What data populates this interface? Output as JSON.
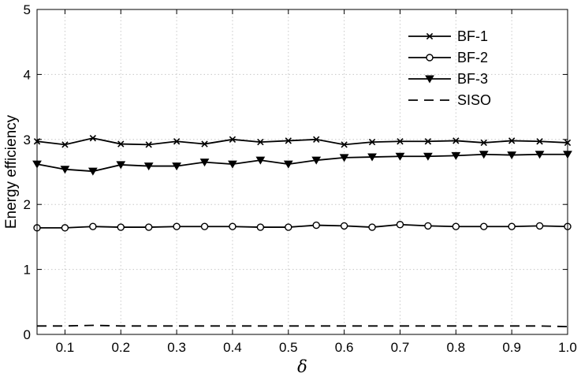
{
  "chart_data": {
    "type": "line",
    "xlabel": "δ",
    "ylabel": "Energy efficiency",
    "xlim": [
      0.05,
      1.0
    ],
    "ylim": [
      0,
      5
    ],
    "xticks": [
      0.1,
      0.2,
      0.3,
      0.4,
      0.5,
      0.6,
      0.7,
      0.8,
      0.9,
      1.0
    ],
    "xtick_labels": [
      "0.1",
      "0.2",
      "0.3",
      "0.4",
      "0.5",
      "0.6",
      "0.7",
      "0.8",
      "0.9",
      "1.0"
    ],
    "yticks": [
      0,
      1,
      2,
      3,
      4,
      5
    ],
    "ytick_labels": [
      "0",
      "1",
      "2",
      "3",
      "4",
      "5"
    ],
    "grid": true,
    "legend_position": "top-right",
    "x": [
      0.05,
      0.1,
      0.15,
      0.2,
      0.25,
      0.3,
      0.35,
      0.4,
      0.45,
      0.5,
      0.55,
      0.6,
      0.65,
      0.7,
      0.75,
      0.8,
      0.85,
      0.9,
      0.95,
      1.0
    ],
    "series": [
      {
        "name": "BF-1",
        "marker": "x",
        "line_style": "solid",
        "values": [
          2.97,
          2.92,
          3.02,
          2.93,
          2.92,
          2.97,
          2.93,
          3.0,
          2.96,
          2.98,
          3.0,
          2.92,
          2.96,
          2.97,
          2.97,
          2.98,
          2.95,
          2.98,
          2.97,
          2.95
        ]
      },
      {
        "name": "BF-2",
        "marker": "circle",
        "line_style": "solid",
        "values": [
          1.64,
          1.64,
          1.66,
          1.65,
          1.65,
          1.66,
          1.66,
          1.66,
          1.65,
          1.65,
          1.68,
          1.67,
          1.65,
          1.69,
          1.67,
          1.66,
          1.66,
          1.66,
          1.67,
          1.66
        ]
      },
      {
        "name": "BF-3",
        "marker": "triangle-down",
        "line_style": "solid",
        "values": [
          2.62,
          2.54,
          2.51,
          2.61,
          2.59,
          2.59,
          2.65,
          2.62,
          2.68,
          2.62,
          2.68,
          2.72,
          2.73,
          2.74,
          2.74,
          2.75,
          2.77,
          2.76,
          2.77,
          2.77
        ]
      },
      {
        "name": "SISO",
        "marker": "none",
        "line_style": "dashed",
        "values": [
          0.13,
          0.13,
          0.14,
          0.13,
          0.13,
          0.13,
          0.13,
          0.13,
          0.13,
          0.13,
          0.13,
          0.13,
          0.13,
          0.13,
          0.13,
          0.13,
          0.13,
          0.13,
          0.13,
          0.12
        ]
      }
    ],
    "colors": {
      "line": "#000000",
      "grid": "#c8c8c8",
      "background": "#ffffff"
    }
  }
}
